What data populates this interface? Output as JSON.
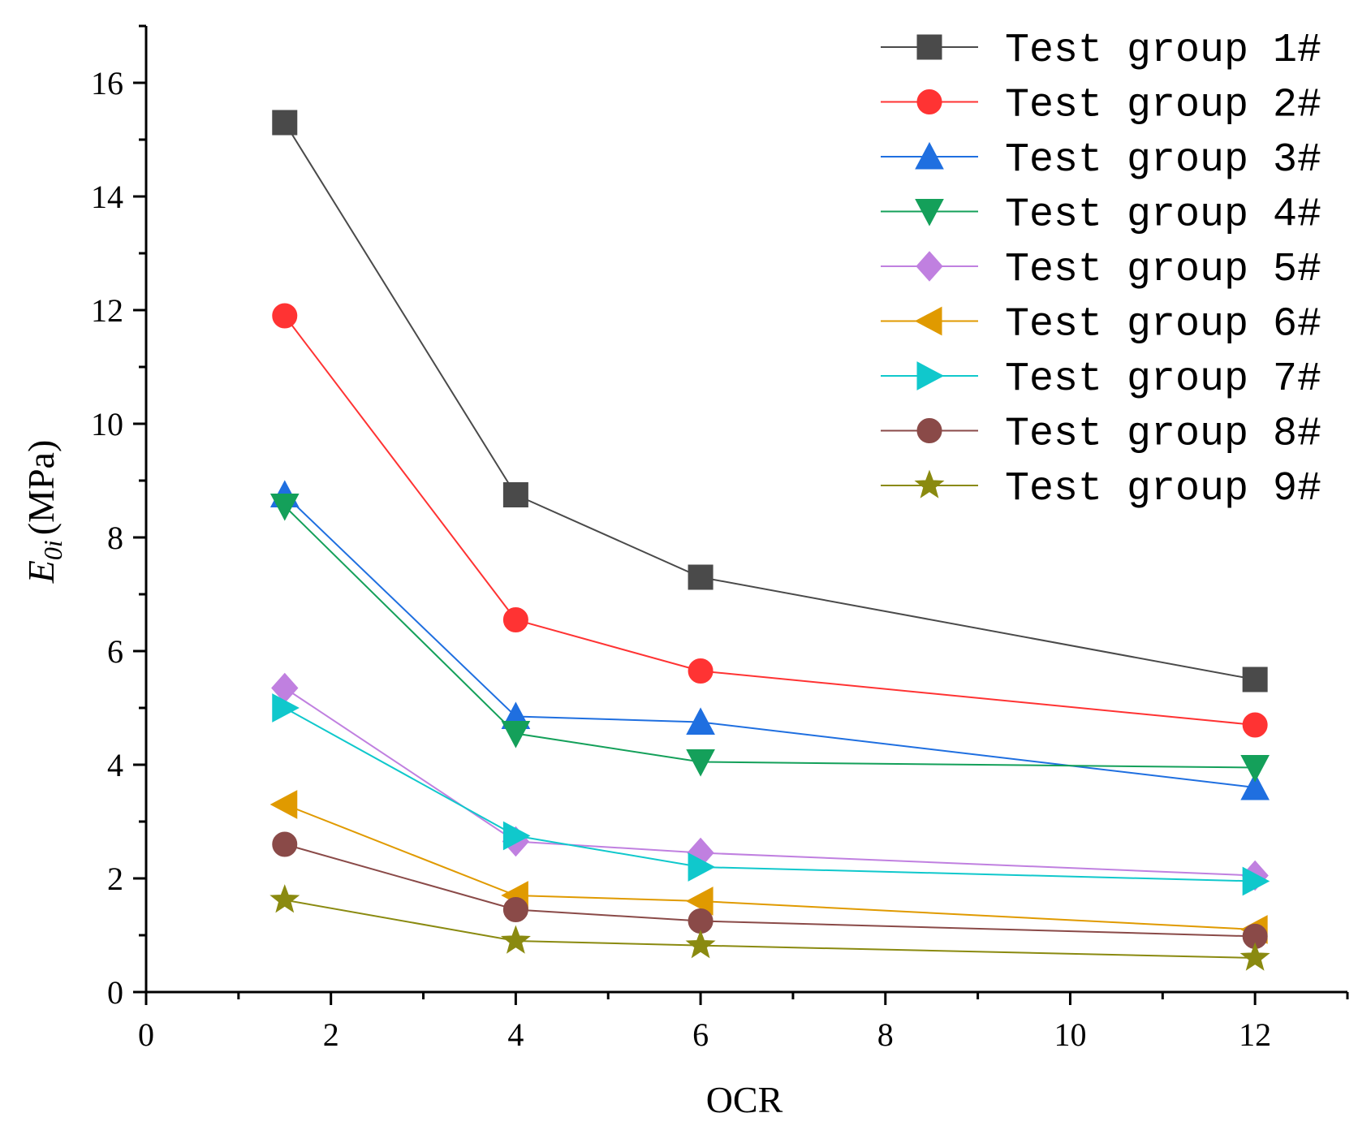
{
  "chart_data": {
    "type": "line",
    "title": "",
    "xlabel": "OCR",
    "ylabel": {
      "main": "E",
      "subscript": "0i",
      "unit": "(MPa)"
    },
    "xlim": [
      0,
      13
    ],
    "ylim": [
      0,
      17
    ],
    "x_major_ticks": [
      0,
      2,
      4,
      6,
      8,
      10,
      12
    ],
    "y_major_ticks": [
      0,
      2,
      4,
      6,
      8,
      10,
      12,
      14,
      16
    ],
    "x": [
      1.5,
      4,
      6,
      12
    ],
    "legend_position": "top-right",
    "series": [
      {
        "name": "Test group 1#",
        "color": "#4a4a4a",
        "marker": "square",
        "values": [
          15.3,
          8.75,
          7.3,
          5.5
        ]
      },
      {
        "name": "Test group 2#",
        "color": "#ff3333",
        "marker": "circle",
        "values": [
          11.9,
          6.55,
          5.65,
          4.7
        ]
      },
      {
        "name": "Test group 3#",
        "color": "#1f6fe0",
        "marker": "triangle-up",
        "values": [
          8.75,
          4.85,
          4.75,
          3.6
        ]
      },
      {
        "name": "Test group 4#",
        "color": "#14a05a",
        "marker": "triangle-down",
        "values": [
          8.55,
          4.55,
          4.05,
          3.95
        ]
      },
      {
        "name": "Test group 5#",
        "color": "#c080e0",
        "marker": "diamond",
        "values": [
          5.35,
          2.65,
          2.45,
          2.05
        ]
      },
      {
        "name": "Test group 6#",
        "color": "#e09a00",
        "marker": "triangle-left",
        "values": [
          3.3,
          1.7,
          1.6,
          1.1
        ]
      },
      {
        "name": "Test group 7#",
        "color": "#10c8cc",
        "marker": "triangle-right",
        "values": [
          5.0,
          2.75,
          2.2,
          1.95
        ]
      },
      {
        "name": "Test group 8#",
        "color": "#8a4a48",
        "marker": "circle",
        "values": [
          2.6,
          1.45,
          1.25,
          0.98
        ]
      },
      {
        "name": "Test group 9#",
        "color": "#8a8a10",
        "marker": "star",
        "values": [
          1.62,
          0.9,
          0.82,
          0.6
        ]
      }
    ]
  }
}
